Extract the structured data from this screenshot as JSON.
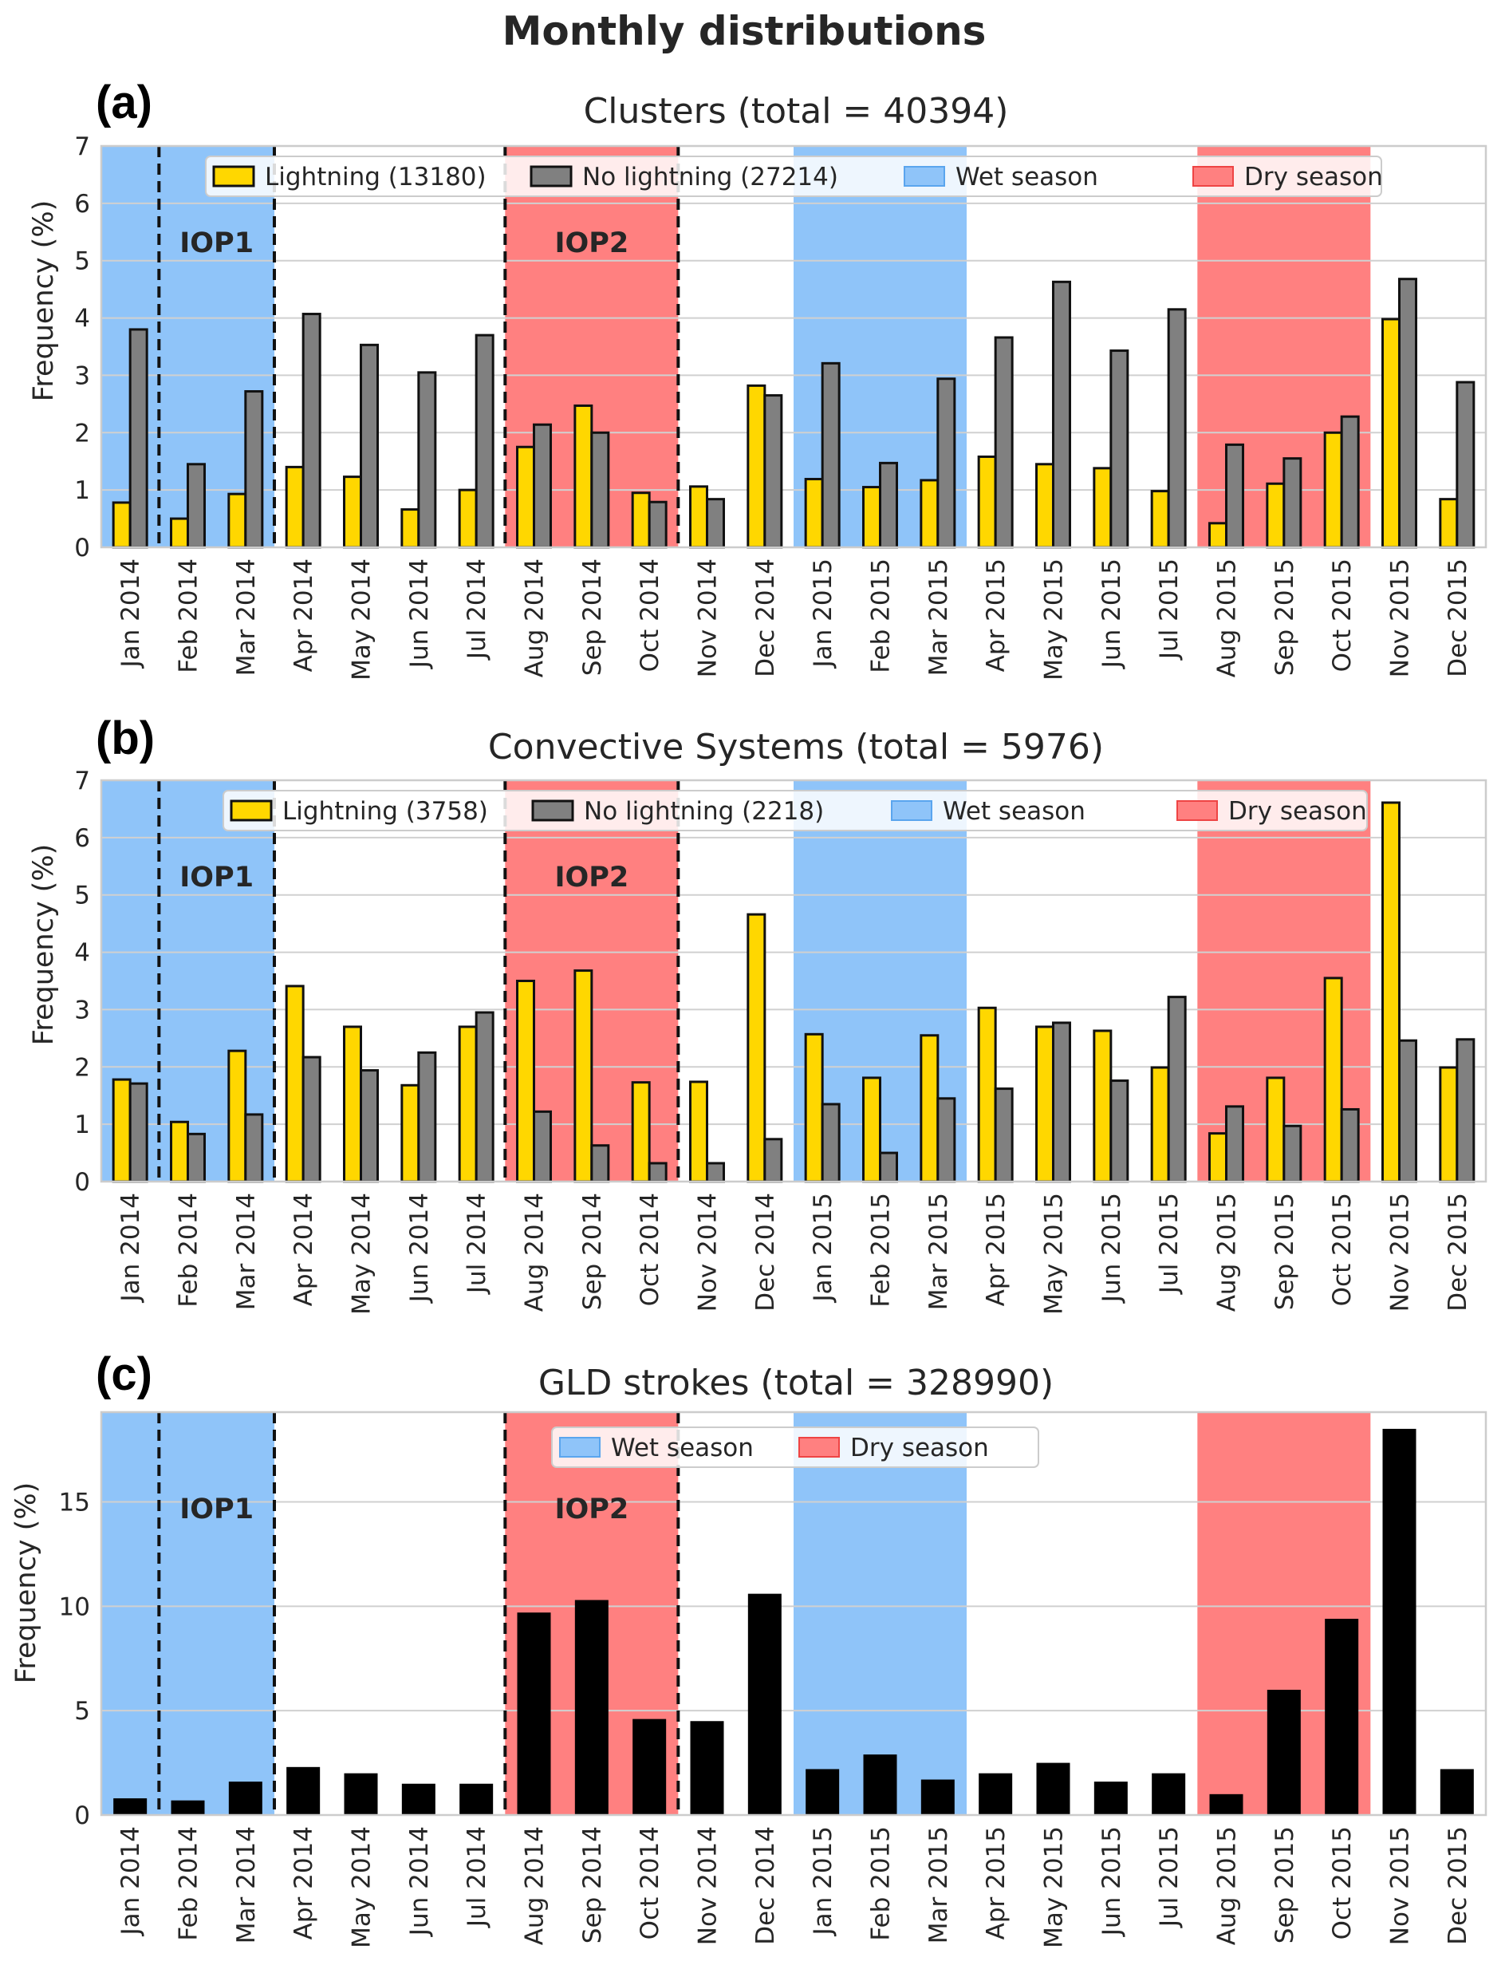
{
  "figure": {
    "title": "Monthly distributions"
  },
  "colors": {
    "wet": "#8fc4f9",
    "dry": "#ff8080",
    "lightning": "#ffd700",
    "no_lightning": "#808080",
    "strokes": "#000000",
    "grid": "#d0d0d0",
    "frame": "#cccccc"
  },
  "chart_data": [
    {
      "label": "(a)",
      "type": "bar",
      "title": "Clusters (total = 40394)",
      "ylabel": "Frequency (%)",
      "ylim": [
        0,
        7
      ],
      "yticks": [
        "0",
        "1",
        "2",
        "3",
        "4",
        "5",
        "6",
        "7"
      ],
      "grid": true,
      "legend_placement": "top",
      "categories": [
        "Jan 2014",
        "Feb 2014",
        "Mar 2014",
        "Apr 2014",
        "May 2014",
        "Jun 2014",
        "Jul 2014",
        "Aug 2014",
        "Sep 2014",
        "Oct 2014",
        "Nov 2014",
        "Dec 2014",
        "Jan 2015",
        "Feb 2015",
        "Mar 2015",
        "Apr 2015",
        "May 2015",
        "Jun 2015",
        "Jul 2015",
        "Aug 2015",
        "Sep 2015",
        "Oct 2015",
        "Nov 2015",
        "Dec 2015"
      ],
      "series": [
        {
          "name": "Lightning (13180)",
          "color_key": "lightning",
          "values": [
            0.78,
            0.5,
            0.93,
            1.4,
            1.23,
            0.66,
            1.0,
            1.75,
            2.47,
            0.95,
            1.06,
            2.82,
            1.19,
            1.05,
            1.17,
            1.58,
            1.45,
            1.38,
            0.98,
            0.42,
            1.11,
            2.0,
            3.98,
            0.84
          ]
        },
        {
          "name": "No lightning (27214)",
          "color_key": "no_lightning",
          "values": [
            3.8,
            1.45,
            2.72,
            4.07,
            3.53,
            3.05,
            3.7,
            2.14,
            2.0,
            0.79,
            0.84,
            2.65,
            3.21,
            1.47,
            2.94,
            3.66,
            4.63,
            3.43,
            4.15,
            1.79,
            1.55,
            2.28,
            4.68,
            2.88
          ]
        }
      ],
      "legend": [
        "Lightning (13180)",
        "No lightning (27214)",
        "Wet season",
        "Dry season"
      ],
      "annotations": [
        "IOP1",
        "IOP2"
      ]
    },
    {
      "label": "(b)",
      "type": "bar",
      "title": "Convective Systems (total = 5976)",
      "ylabel": "Frequency (%)",
      "ylim": [
        0,
        7
      ],
      "yticks": [
        "0",
        "1",
        "2",
        "3",
        "4",
        "5",
        "6",
        "7"
      ],
      "grid": true,
      "legend_placement": "top",
      "categories": [
        "Jan 2014",
        "Feb 2014",
        "Mar 2014",
        "Apr 2014",
        "May 2014",
        "Jun 2014",
        "Jul 2014",
        "Aug 2014",
        "Sep 2014",
        "Oct 2014",
        "Nov 2014",
        "Dec 2014",
        "Jan 2015",
        "Feb 2015",
        "Mar 2015",
        "Apr 2015",
        "May 2015",
        "Jun 2015",
        "Jul 2015",
        "Aug 2015",
        "Sep 2015",
        "Oct 2015",
        "Nov 2015",
        "Dec 2015"
      ],
      "series": [
        {
          "name": "Lightning (3758)",
          "color_key": "lightning",
          "values": [
            1.78,
            1.04,
            2.28,
            3.41,
            2.7,
            1.68,
            2.7,
            3.5,
            3.68,
            1.73,
            1.74,
            4.66,
            2.57,
            1.81,
            2.55,
            3.03,
            2.7,
            2.63,
            1.99,
            0.84,
            1.81,
            3.55,
            6.61,
            1.99
          ]
        },
        {
          "name": "No lightning (2218)",
          "color_key": "no_lightning",
          "values": [
            1.71,
            0.83,
            1.17,
            2.17,
            1.94,
            2.25,
            2.95,
            1.22,
            0.63,
            0.32,
            0.32,
            0.74,
            1.35,
            0.5,
            1.45,
            1.62,
            2.77,
            1.76,
            3.22,
            1.31,
            0.97,
            1.26,
            2.46,
            2.48
          ]
        }
      ],
      "legend": [
        "Lightning (3758)",
        "No lightning (2218)",
        "Wet season",
        "Dry season"
      ],
      "annotations": [
        "IOP1",
        "IOP2"
      ]
    },
    {
      "label": "(c)",
      "type": "bar",
      "title": "GLD strokes (total = 328990)",
      "ylabel": "Frequency (%)",
      "ylim": [
        0,
        19.3
      ],
      "yticks": [
        "0",
        "5",
        "10",
        "15"
      ],
      "grid": true,
      "legend_placement": "top",
      "categories": [
        "Jan 2014",
        "Feb 2014",
        "Mar 2014",
        "Apr 2014",
        "May 2014",
        "Jun 2014",
        "Jul 2014",
        "Aug 2014",
        "Sep 2014",
        "Oct 2014",
        "Nov 2014",
        "Dec 2014",
        "Jan 2015",
        "Feb 2015",
        "Mar 2015",
        "Apr 2015",
        "May 2015",
        "Jun 2015",
        "Jul 2015",
        "Aug 2015",
        "Sep 2015",
        "Oct 2015",
        "Nov 2015",
        "Dec 2015"
      ],
      "series": [
        {
          "color_key": "strokes",
          "values": [
            0.8,
            0.7,
            1.6,
            2.3,
            2.0,
            1.5,
            1.5,
            9.7,
            10.3,
            4.6,
            4.5,
            10.6,
            2.2,
            2.9,
            1.7,
            2.0,
            2.5,
            1.6,
            2.0,
            1.0,
            6.0,
            9.4,
            18.5,
            2.2
          ]
        }
      ],
      "legend": [
        "Wet season",
        "Dry season"
      ],
      "annotations": [
        "IOP1",
        "IOP2"
      ]
    }
  ]
}
